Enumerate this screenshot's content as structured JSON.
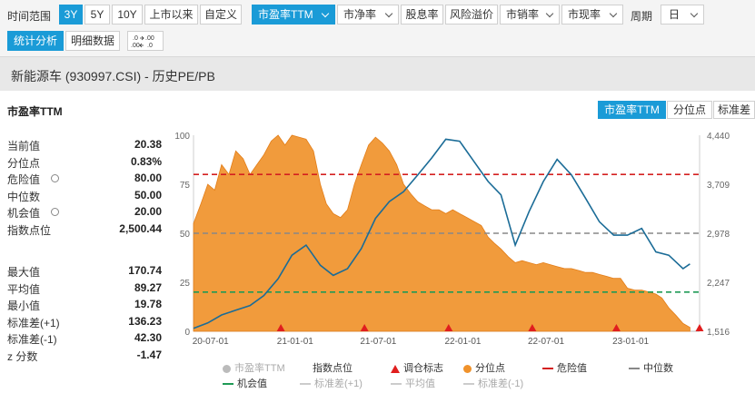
{
  "toolbar": {
    "time_range_label": "时间范围",
    "time_buttons": [
      "3Y",
      "5Y",
      "10Y",
      "上市以来",
      "自定义"
    ],
    "metric_dropdowns": [
      "市盈率TTM",
      "市净率",
      "股息率",
      "风险溢价",
      "市销率",
      "市现率"
    ],
    "period_label": "周期",
    "period_value": "日",
    "view_tabs": [
      "统计分析",
      "明细数据"
    ],
    "decimal_icon": ".00 / .00"
  },
  "title": "新能源车 (930997.CSI) - 历史PE/PB",
  "panel": {
    "title": "市盈率TTM",
    "metric_tabs": [
      "市盈率TTM",
      "分位点",
      "标准差"
    ]
  },
  "stats_top": [
    {
      "label": "当前值",
      "value": "20.38",
      "gear": false
    },
    {
      "label": "分位点",
      "value": "0.83%",
      "gear": false
    },
    {
      "label": "危险值",
      "value": "80.00",
      "gear": true
    },
    {
      "label": "中位数",
      "value": "50.00",
      "gear": false
    },
    {
      "label": "机会值",
      "value": "20.00",
      "gear": true
    },
    {
      "label": "指数点位",
      "value": "2,500.44",
      "gear": false
    }
  ],
  "stats_bottom": [
    {
      "label": "最大值",
      "value": "170.74"
    },
    {
      "label": "平均值",
      "value": "89.27"
    },
    {
      "label": "最小值",
      "value": "19.78"
    },
    {
      "label": "标准差(+1)",
      "value": "136.23"
    },
    {
      "label": "标准差(-1)",
      "value": "42.30"
    },
    {
      "label": "z 分数",
      "value": "-1.47"
    }
  ],
  "chart_data": {
    "type": "area",
    "x_ticks": [
      "20-07-01",
      "21-01-01",
      "21-07-01",
      "22-01-01",
      "22-07-01",
      "23-01-01"
    ],
    "y_left_ticks": [
      "0",
      "25",
      "50",
      "75",
      "100"
    ],
    "y_left_range": [
      0,
      100
    ],
    "y_right_ticks": [
      "1,516",
      "2,247",
      "2,978",
      "3,709",
      "4,440"
    ],
    "y_right_range": [
      1516,
      4440
    ],
    "reference_lines": [
      {
        "name": "危险值",
        "value": 80,
        "color": "#d42020"
      },
      {
        "name": "中位数",
        "value": 50,
        "color": "#888888"
      },
      {
        "name": "机会值",
        "value": 20,
        "color": "#1f9a55"
      }
    ],
    "series": [
      {
        "name": "分位点",
        "color": "#f0922b",
        "x": [
          "2020-05-25",
          "2020-06-10",
          "2020-06-25",
          "2020-07-10",
          "2020-07-25",
          "2020-08-10",
          "2020-08-25",
          "2020-09-10",
          "2020-09-25",
          "2020-10-10",
          "2020-10-25",
          "2020-11-10",
          "2020-11-25",
          "2020-12-10",
          "2020-12-25",
          "2021-01-10",
          "2021-01-25",
          "2021-02-10",
          "2021-02-25",
          "2021-03-10",
          "2021-03-25",
          "2021-04-10",
          "2021-04-25",
          "2021-05-10",
          "2021-05-25",
          "2021-06-10",
          "2021-06-25",
          "2021-07-10",
          "2021-07-25",
          "2021-08-10",
          "2021-08-25",
          "2021-09-10",
          "2021-09-25",
          "2021-10-10",
          "2021-10-25",
          "2021-11-10",
          "2021-11-25",
          "2021-12-10",
          "2021-12-25",
          "2022-01-10",
          "2022-01-25",
          "2022-02-10",
          "2022-02-25",
          "2022-03-10",
          "2022-03-25",
          "2022-04-10",
          "2022-04-25",
          "2022-05-10",
          "2022-05-25",
          "2022-06-10",
          "2022-06-25",
          "2022-07-10",
          "2022-07-25",
          "2022-08-10",
          "2022-08-25",
          "2022-09-10",
          "2022-09-25",
          "2022-10-10",
          "2022-10-25",
          "2022-11-10",
          "2022-11-25",
          "2022-12-10",
          "2022-12-25",
          "2023-01-10",
          "2023-01-25",
          "2023-02-10",
          "2023-02-25",
          "2023-03-10",
          "2023-03-25",
          "2023-04-10",
          "2023-04-25",
          "2023-05-10"
        ],
        "values": [
          55,
          65,
          75,
          72,
          85,
          80,
          92,
          88,
          80,
          85,
          90,
          97,
          100,
          95,
          100,
          99,
          98,
          92,
          75,
          65,
          60,
          58,
          62,
          75,
          85,
          95,
          99,
          96,
          92,
          85,
          75,
          70,
          66,
          64,
          62,
          62,
          60,
          62,
          60,
          58,
          56,
          54,
          48,
          45,
          42,
          38,
          35,
          36,
          35,
          34,
          35,
          34,
          33,
          32,
          32,
          31,
          30,
          30,
          29,
          28,
          27,
          27,
          22,
          21,
          21,
          20,
          19,
          17,
          12,
          8,
          4,
          2
        ]
      },
      {
        "name": "指数点位",
        "color": "#1b6c97",
        "x": [
          "2020-05-25",
          "2020-06-25",
          "2020-07-25",
          "2020-08-25",
          "2020-09-25",
          "2020-10-25",
          "2020-11-25",
          "2020-12-25",
          "2021-01-25",
          "2021-02-25",
          "2021-03-25",
          "2021-04-25",
          "2021-05-25",
          "2021-06-25",
          "2021-07-25",
          "2021-08-25",
          "2021-09-25",
          "2021-10-25",
          "2021-11-25",
          "2021-12-25",
          "2022-01-25",
          "2022-02-25",
          "2022-03-25",
          "2022-04-25",
          "2022-05-25",
          "2022-06-25",
          "2022-07-25",
          "2022-08-25",
          "2022-09-25",
          "2022-10-25",
          "2022-11-25",
          "2022-12-25",
          "2023-01-25",
          "2023-02-25",
          "2023-03-25",
          "2023-04-25",
          "2023-05-10"
        ],
        "values": [
          1560,
          1640,
          1760,
          1830,
          1900,
          2050,
          2300,
          2650,
          2800,
          2500,
          2350,
          2450,
          2750,
          3200,
          3450,
          3600,
          3850,
          4100,
          4380,
          4350,
          4050,
          3750,
          3550,
          2800,
          3300,
          3750,
          4080,
          3850,
          3500,
          3150,
          2950,
          2950,
          3050,
          2700,
          2650,
          2450,
          2520
        ]
      }
    ],
    "markers": {
      "name": "调仓标志",
      "x": [
        "2020-12-01",
        "2021-06-01",
        "2021-12-01",
        "2022-06-01",
        "2022-12-01",
        "2023-05-31"
      ]
    }
  },
  "legend": [
    {
      "name": "市盈率TTM",
      "kind": "dot",
      "color": "#bbbbbb",
      "active": false
    },
    {
      "name": "指数点位",
      "kind": "line",
      "color": "#1b6c97",
      "active": true
    },
    {
      "name": "调仓标志",
      "kind": "tri",
      "color": "#e01e1e",
      "active": true
    },
    {
      "name": "分位点",
      "kind": "dot",
      "color": "#f0922b",
      "active": true
    },
    {
      "name": "危险值",
      "kind": "dash",
      "color": "#d42020",
      "active": true
    },
    {
      "name": "中位数",
      "kind": "dash",
      "color": "#888888",
      "active": true
    },
    {
      "name": "机会值",
      "kind": "dash",
      "color": "#1f9a55",
      "active": true
    },
    {
      "name": "标准差(+1)",
      "kind": "dash",
      "color": "#cccccc",
      "active": false
    },
    {
      "name": "平均值",
      "kind": "dash",
      "color": "#cccccc",
      "active": false
    },
    {
      "name": "标准差(-1)",
      "kind": "dash",
      "color": "#cccccc",
      "active": false
    }
  ]
}
